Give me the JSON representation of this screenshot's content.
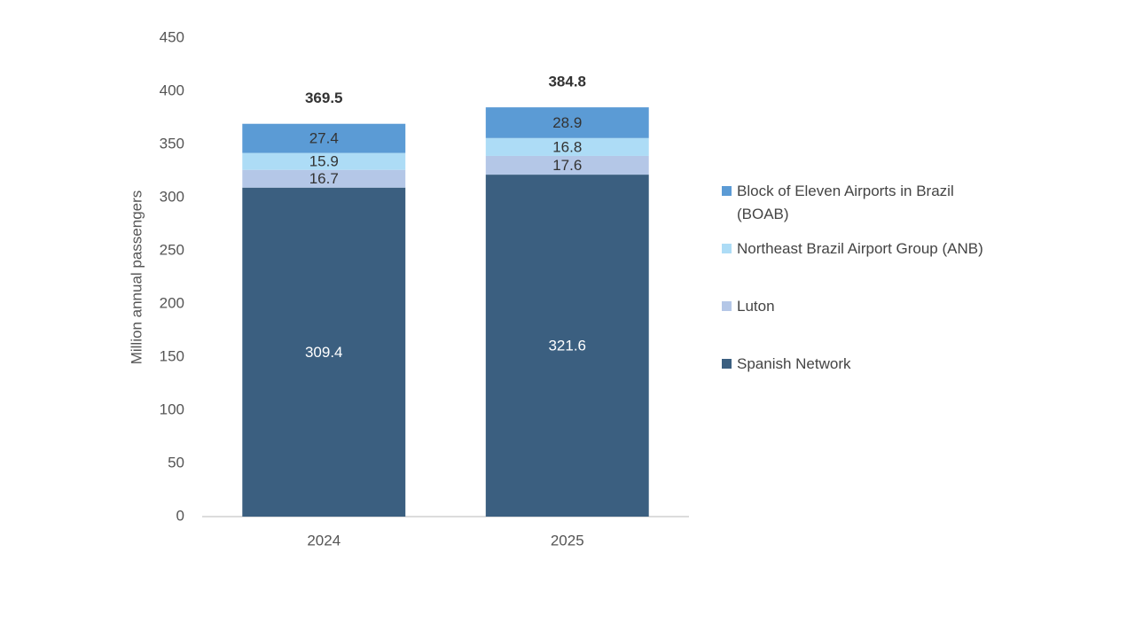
{
  "chart_data": {
    "type": "stacked_bar",
    "y_label": "Million annual passengers",
    "categories": [
      "2024",
      "2025"
    ],
    "series": [
      {
        "name": "Spanish Network",
        "color": "#3b5f80",
        "values": [
          309.4,
          321.6
        ]
      },
      {
        "name": "Luton",
        "color": "#b4c7e7",
        "values": [
          16.7,
          17.6
        ]
      },
      {
        "name": "Northeast Brazil Airport Group (ANB)",
        "color": "#addcf6",
        "values": [
          15.9,
          16.8
        ]
      },
      {
        "name": "Block of Eleven Airports in Brazil (BOAB)",
        "color": "#5b9bd5",
        "values": [
          27.4,
          28.9
        ]
      }
    ],
    "totals": [
      369.5,
      384.8
    ],
    "ylim": [
      0,
      450
    ],
    "yticks": [
      0,
      50,
      100,
      150,
      200,
      250,
      300,
      350,
      400,
      450
    ],
    "grid": false,
    "legend": "right"
  }
}
